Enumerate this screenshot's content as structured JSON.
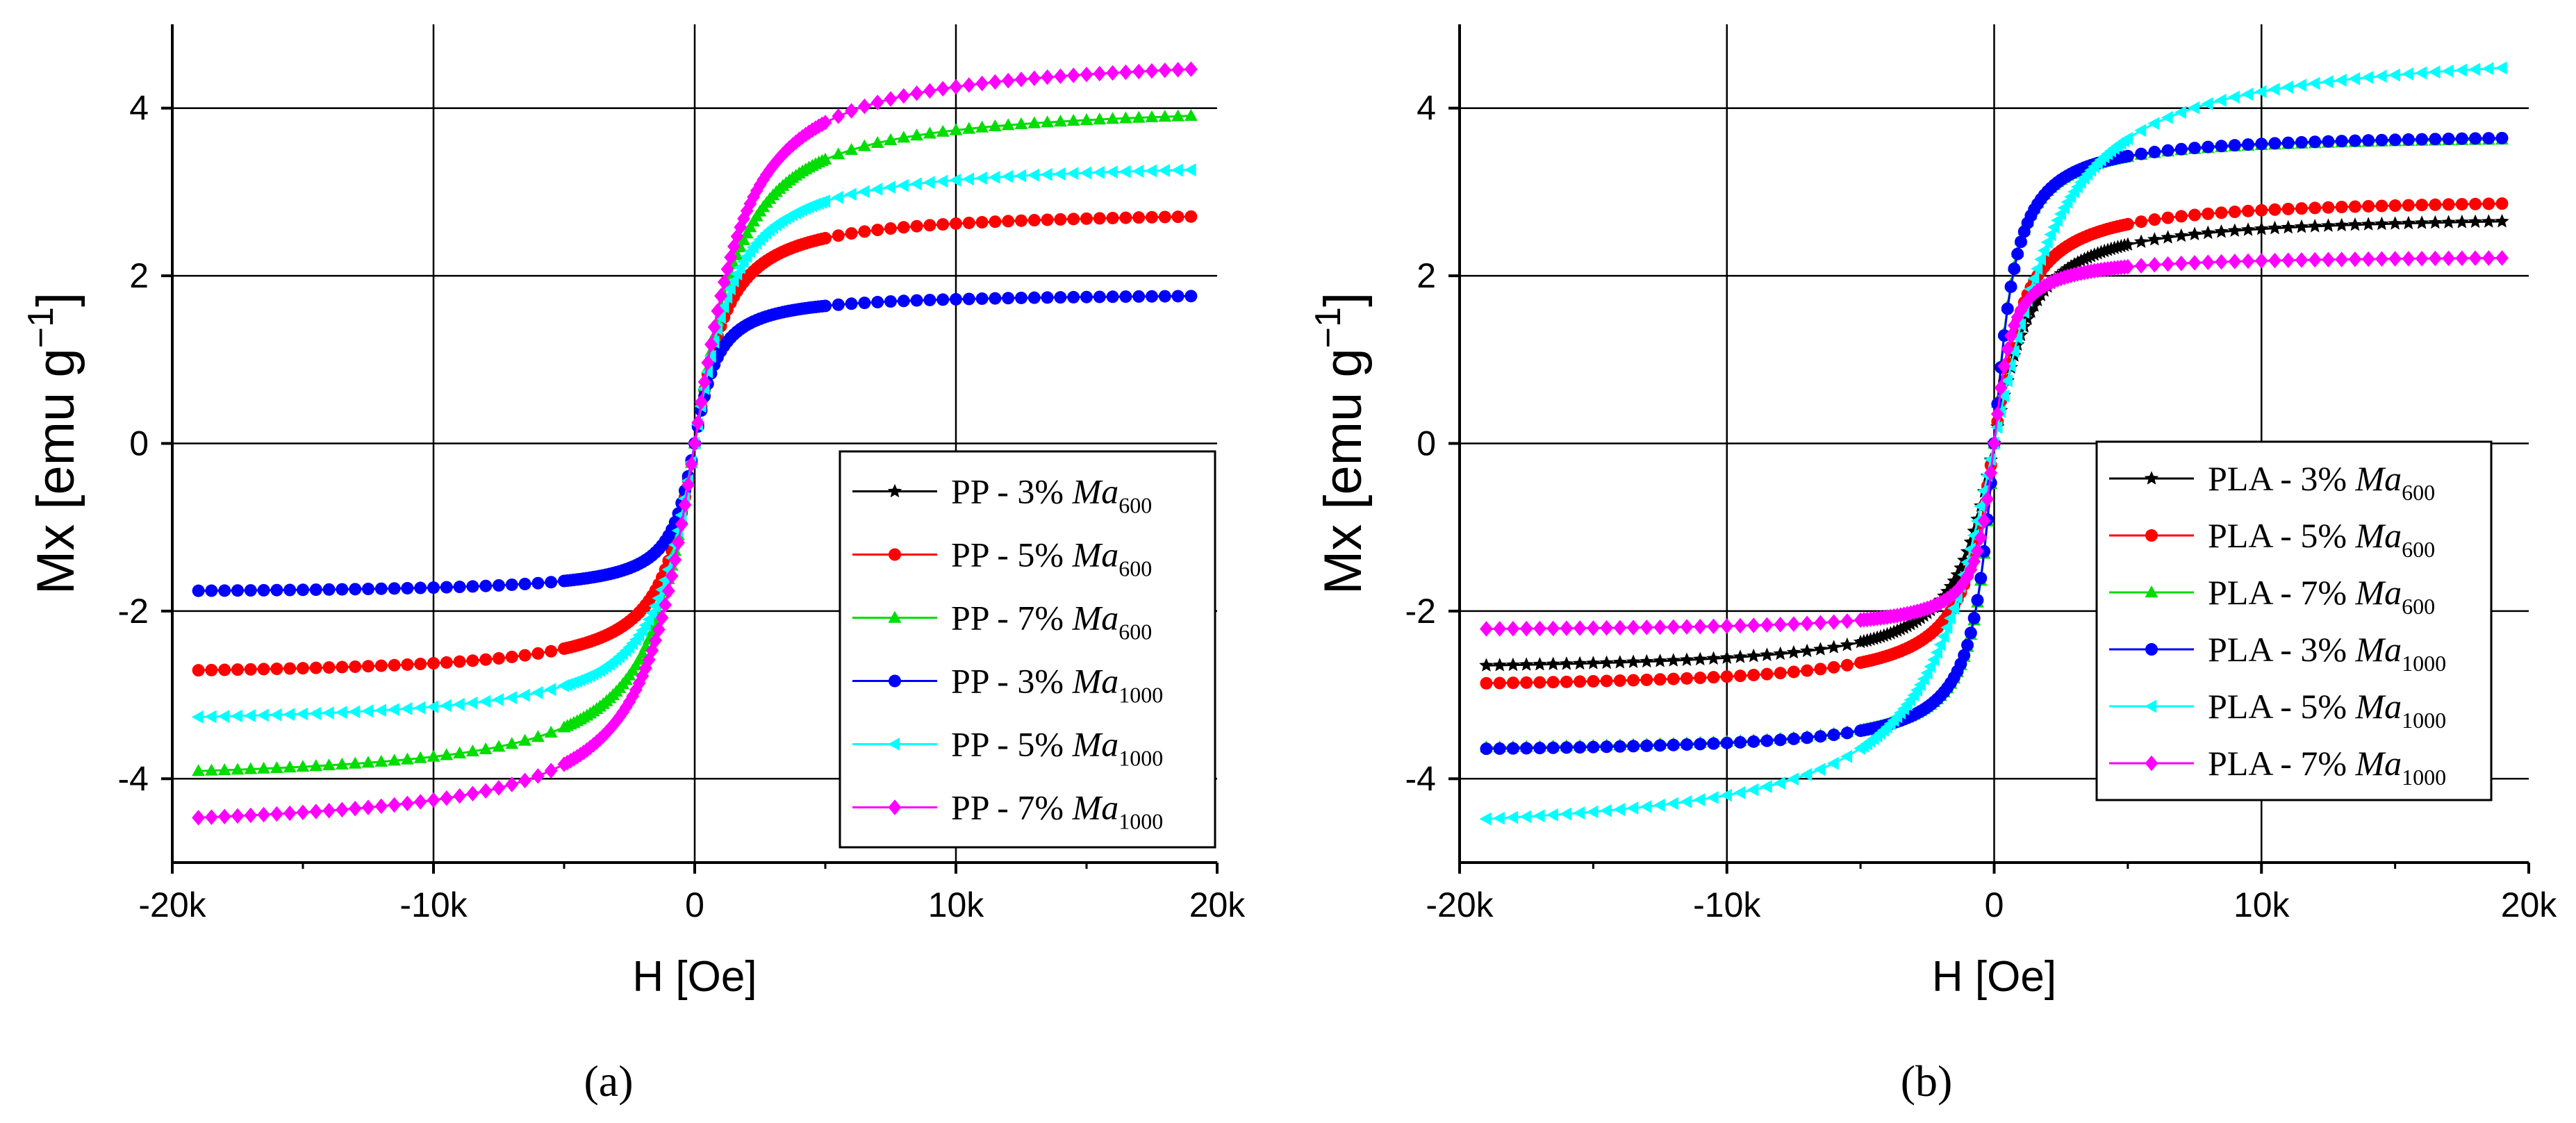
{
  "figure": {
    "panel_labels": [
      "(a)",
      "(b)"
    ]
  },
  "chart_data": [
    {
      "type": "line",
      "panel": "(a)",
      "title": "",
      "xlabel": "H [Oe]",
      "ylabel": "Mx [emu g",
      "ylabel_sup": "−1",
      "ylabel_tail": "]",
      "xlim": [
        -20000,
        20000
      ],
      "ylim": [
        -5,
        5
      ],
      "xticks": [
        -20000,
        -10000,
        0,
        10000,
        20000
      ],
      "xtick_labels": [
        "-20k",
        "-10k",
        "0",
        "10k",
        "20k"
      ],
      "yticks": [
        -4,
        -2,
        0,
        2,
        4
      ],
      "ytick_labels": [
        "-4",
        "-2",
        "0",
        "2",
        "4"
      ],
      "grid": true,
      "legend_position": "center-right",
      "series": [
        {
          "name": "PP - 3% Ma",
          "sub": "600",
          "color": "#000000",
          "marker": "star",
          "ms": 2.2,
          "hc": 1000,
          "visible": false
        },
        {
          "name": "PP - 5% Ma",
          "sub": "600",
          "color": "#ff0000",
          "marker": "circle",
          "ms": 2.8,
          "hc": 1000,
          "visible": true
        },
        {
          "name": "PP - 7% Ma",
          "sub": "600",
          "color": "#00dd00",
          "marker": "triangle",
          "ms": 4.1,
          "hc": 1400,
          "visible": true
        },
        {
          "name": "PP - 3% Ma",
          "sub": "1000",
          "color": "#0000ff",
          "marker": "circle",
          "ms": 1.8,
          "hc": 700,
          "visible": true
        },
        {
          "name": "PP - 5% Ma",
          "sub": "1000",
          "color": "#00ffff",
          "marker": "triangle-left",
          "ms": 3.4,
          "hc": 1200,
          "visible": true
        },
        {
          "name": "PP - 7% Ma",
          "sub": "1000",
          "color": "#ff00ff",
          "marker": "diamond",
          "ms": 4.7,
          "hc": 1500,
          "visible": true
        }
      ]
    },
    {
      "type": "line",
      "panel": "(b)",
      "title": "",
      "xlabel": "H [Oe]",
      "ylabel": "Mx [emu g",
      "ylabel_sup": "−1",
      "ylabel_tail": "]",
      "xlim": [
        -20000,
        20000
      ],
      "ylim": [
        -5,
        5
      ],
      "xticks": [
        -20000,
        -10000,
        0,
        10000,
        20000
      ],
      "xtick_labels": [
        "-20k",
        "-10k",
        "0",
        "10k",
        "20k"
      ],
      "yticks": [
        -4,
        -2,
        0,
        2,
        4
      ],
      "ytick_labels": [
        "-4",
        "-2",
        "0",
        "2",
        "4"
      ],
      "grid": true,
      "legend_position": "center-right",
      "series": [
        {
          "name": "PLA - 3% Ma",
          "sub": "600",
          "color": "#000000",
          "marker": "star",
          "ms": 2.75,
          "hc": 1100,
          "visible": true
        },
        {
          "name": "PLA - 5% Ma",
          "sub": "600",
          "color": "#ff0000",
          "marker": "circle",
          "ms": 2.95,
          "hc": 900,
          "visible": true
        },
        {
          "name": "PLA - 7% Ma",
          "sub": "600",
          "color": "#00dd00",
          "marker": "triangle",
          "ms": 3.7,
          "hc": 600,
          "visible": true
        },
        {
          "name": "PLA - 3% Ma",
          "sub": "1000",
          "color": "#0000ff",
          "marker": "circle",
          "ms": 3.72,
          "hc": 620,
          "visible": true
        },
        {
          "name": "PLA - 5% Ma",
          "sub": "1000",
          "color": "#00ffff",
          "marker": "triangle-left",
          "ms": 4.8,
          "hc": 2000,
          "visible": true
        },
        {
          "name": "PLA - 7% Ma",
          "sub": "1000",
          "color": "#ff00ff",
          "marker": "diamond",
          "ms": 2.25,
          "hc": 500,
          "visible": true
        }
      ]
    }
  ]
}
